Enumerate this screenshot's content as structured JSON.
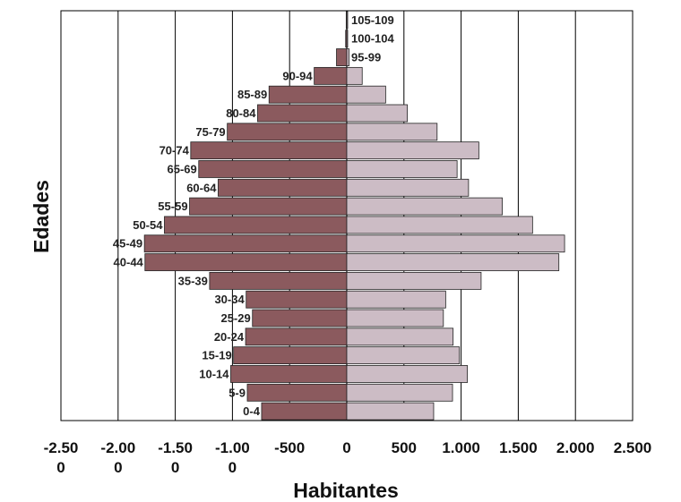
{
  "chart_data": {
    "type": "bar",
    "orientation": "horizontal",
    "xlabel": "Habitantes",
    "ylabel": "Edades",
    "xlim": [
      -2500,
      2500
    ],
    "x_ticks": [
      -2500,
      -2000,
      -1500,
      -1000,
      -500,
      0,
      500,
      1000,
      1500,
      2000,
      2500
    ],
    "x_tick_labels": [
      [
        "-2.50",
        "0"
      ],
      [
        "-2.00",
        "0"
      ],
      [
        "-1.50",
        "0"
      ],
      [
        "-1.00",
        "0"
      ],
      [
        "-500"
      ],
      [
        "0"
      ],
      [
        "500"
      ],
      [
        "1.000"
      ],
      [
        "1.500"
      ],
      [
        "2.000"
      ],
      [
        "2.500"
      ]
    ],
    "grid": "vertical",
    "categories": [
      "0-4",
      "5-9",
      "10-14",
      "15-19",
      "20-24",
      "25-29",
      "30-34",
      "35-39",
      "40-44",
      "45-49",
      "50-54",
      "55-59",
      "60-64",
      "65-69",
      "70-74",
      "75-79",
      "80-84",
      "85-89",
      "90-94",
      "95-99",
      "100-104",
      "105-109"
    ],
    "series": [
      {
        "values": [
          -745,
          -870,
          -1015,
          -990,
          -885,
          -825,
          -880,
          -1200,
          -1765,
          -1770,
          -1595,
          -1375,
          -1125,
          -1295,
          -1365,
          -1045,
          -780,
          -680,
          -285,
          -90,
          -10,
          -5
        ],
        "color": "#8b5a5e"
      },
      {
        "values": [
          760,
          925,
          1055,
          985,
          930,
          845,
          865,
          1175,
          1855,
          1905,
          1625,
          1360,
          1065,
          965,
          1155,
          790,
          530,
          340,
          135,
          20,
          5,
          5
        ],
        "color": "#ccbcc5"
      }
    ]
  }
}
